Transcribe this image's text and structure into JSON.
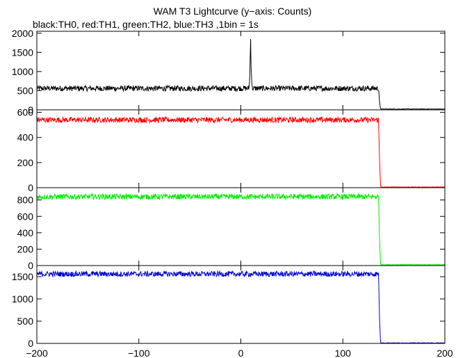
{
  "chart_data": {
    "type": "line",
    "title": "WAM T3 Lightcurve (y−axis: Counts)",
    "subtitle": "black:TH0, red:TH1, green:TH2, blue:TH3 ,1bin = 1s",
    "xlim": [
      -200,
      200
    ],
    "x_ticks": [
      -200,
      -100,
      0,
      100,
      200
    ],
    "x_tick_labels": [
      "−200",
      "−100",
      "0",
      "100",
      "200"
    ],
    "grid": false,
    "panels": [
      {
        "series": "TH0",
        "color": "#000000",
        "ylim": [
          0,
          2050
        ],
        "y_ticks": [
          0,
          500,
          1000,
          1500,
          2000
        ],
        "points": [
          [
            -200,
            560
          ],
          [
            8,
            560
          ],
          [
            9,
            1000
          ],
          [
            9.5,
            2000
          ],
          [
            10,
            1200
          ],
          [
            11,
            560
          ],
          [
            135,
            560
          ],
          [
            136,
            200
          ],
          [
            137,
            20
          ],
          [
            200,
            20
          ]
        ]
      },
      {
        "series": "TH1",
        "color": "#ff0000",
        "ylim": [
          0,
          620
        ],
        "y_ticks": [
          0,
          200,
          400,
          600
        ],
        "points": [
          [
            -200,
            540
          ],
          [
            135,
            540
          ],
          [
            136,
            220
          ],
          [
            137,
            5
          ],
          [
            200,
            5
          ]
        ]
      },
      {
        "series": "TH2",
        "color": "#00ee00",
        "ylim": [
          0,
          950
        ],
        "y_ticks": [
          0,
          200,
          400,
          600,
          800
        ],
        "points": [
          [
            -200,
            840
          ],
          [
            135,
            840
          ],
          [
            136,
            320
          ],
          [
            137,
            10
          ],
          [
            200,
            10
          ]
        ]
      },
      {
        "series": "TH3",
        "color": "#0000cc",
        "ylim": [
          0,
          1750
        ],
        "y_ticks": [
          0,
          500,
          1000,
          1500
        ],
        "points": [
          [
            -200,
            1560
          ],
          [
            135,
            1560
          ],
          [
            136,
            520
          ],
          [
            137,
            10
          ],
          [
            200,
            10
          ]
        ]
      }
    ]
  }
}
